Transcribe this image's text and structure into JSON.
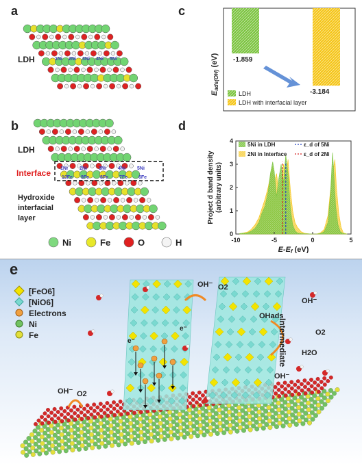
{
  "panel_a": {
    "label": "a",
    "layer_label": "LDH",
    "site_labels": [
      "1Ni",
      "2Ni",
      "3Ni",
      "4Ni",
      "5Ni"
    ]
  },
  "panel_b": {
    "label": "b",
    "ldh_label": "LDH",
    "interface_label": "Interface",
    "hydroxide_label": "Hydroxide\ninterfacial\nlayer",
    "ni_sites": [
      "1Ni",
      "2Ni",
      "3Ni",
      "4Ni",
      "5Ni"
    ],
    "fe_sites": [
      "10Fe",
      "9Fe",
      "8Fe",
      "7Fe",
      "6Fe"
    ],
    "legend": [
      {
        "symbol": "Ni",
        "color": "#7fd97f"
      },
      {
        "symbol": "Fe",
        "color": "#e8e82a"
      },
      {
        "symbol": "O",
        "color": "#e02020"
      },
      {
        "symbol": "H",
        "color": "#f4f4f4"
      }
    ]
  },
  "panel_c": {
    "label": "c",
    "chart_data": {
      "type": "bar",
      "ylabel": "E_ads(OH) (eV)",
      "categories": [
        "LDH",
        "LDH with interfacial layer"
      ],
      "values": [
        -1.859,
        -3.184
      ],
      "value_labels": [
        "-1.859",
        "-3.184"
      ],
      "colors": [
        "#7cc440",
        "#f5c518"
      ],
      "legend_position": "bottom-left",
      "ylim": [
        -3.6,
        0
      ]
    }
  },
  "panel_d": {
    "label": "d",
    "chart_data": {
      "type": "area",
      "xlabel": "E-E_f (eV)",
      "ylabel": "Project d band density\n(arbitrary units)",
      "xlim": [
        -10,
        5
      ],
      "ylim": [
        0,
        4
      ],
      "xticks": [
        -10,
        -5,
        0,
        5
      ],
      "yticks": [
        0,
        1,
        2,
        3,
        4
      ],
      "series": [
        {
          "name": "5Ni in LDH",
          "color": "#7cc440",
          "x": [
            -9.5,
            -8.5,
            -8,
            -7.5,
            -7,
            -6.6,
            -6.2,
            -5.8,
            -5.5,
            -5.2,
            -5.0,
            -4.7,
            -4.4,
            -4.1,
            -3.8,
            -3.5,
            -3.2,
            -2.9,
            -2.6,
            -2.3,
            -2.0,
            -1.5,
            -1.0,
            -0.5,
            0,
            0.5,
            1.0,
            1.5,
            2.0,
            2.3,
            2.6,
            2.8,
            3.0,
            3.3,
            3.6,
            4.0,
            4.5
          ],
          "y": [
            0.02,
            0.05,
            0.12,
            0.25,
            0.5,
            0.9,
            1.2,
            1.8,
            2.6,
            3.1,
            2.7,
            1.6,
            2.4,
            3.0,
            2.2,
            3.4,
            2.6,
            1.1,
            0.4,
            0.15,
            0.05,
            0.02,
            0.01,
            0.01,
            0,
            0,
            0.02,
            0.1,
            0.5,
            1.6,
            3.5,
            2.4,
            1.2,
            0.4,
            0.1,
            0.02,
            0
          ]
        },
        {
          "name": "2Ni in Interface",
          "color": "#f5c518",
          "x": [
            -9.5,
            -8.5,
            -8,
            -7.5,
            -7,
            -6.6,
            -6.2,
            -5.8,
            -5.5,
            -5.2,
            -5.0,
            -4.7,
            -4.4,
            -4.1,
            -3.8,
            -3.5,
            -3.2,
            -2.9,
            -2.6,
            -2.3,
            -2.0,
            -1.5,
            -1.0,
            -0.5,
            0,
            0.5,
            1.0,
            1.5,
            2.0,
            2.3,
            2.6,
            2.9,
            3.1,
            3.4,
            3.7,
            4.0,
            4.5
          ],
          "y": [
            0.02,
            0.08,
            0.2,
            0.4,
            0.7,
            1.1,
            1.5,
            2.0,
            2.5,
            2.9,
            2.2,
            2.6,
            1.8,
            2.3,
            3.0,
            2.4,
            3.2,
            1.9,
            1.0,
            0.5,
            0.3,
            0.1,
            0.03,
            0.01,
            0,
            0,
            0.05,
            0.2,
            0.8,
            1.8,
            2.6,
            3.2,
            2.0,
            0.9,
            0.3,
            0.05,
            0
          ]
        }
      ],
      "vlines": [
        {
          "name": "ε_d of 5Ni",
          "x": -3.5,
          "color": "#1f3fbf"
        },
        {
          "name": "ε_d of 2Ni",
          "x": -3.9,
          "color": "#d42020"
        }
      ],
      "legend": [
        "5Ni in LDH",
        "ε_d of 5Ni",
        "2Ni in Interface",
        "ε_d of 2Ni"
      ]
    }
  },
  "panel_e": {
    "label": "e",
    "legend": [
      {
        "text": "[FeO6]",
        "icon": "yellow-octahedron-icon"
      },
      {
        "text": "[NiO6]",
        "icon": "cyan-octahedron-icon"
      },
      {
        "text": "Electrons",
        "icon": "electron-icon"
      },
      {
        "text": "Ni",
        "icon": "ni-sphere-icon"
      },
      {
        "text": "Fe",
        "icon": "fe-sphere-icon"
      }
    ],
    "labels": {
      "oh_top": "OH⁻",
      "o2_top": "O2",
      "ohads": "OHads",
      "oh_right": "OH⁻",
      "intermediate": "Intermediate",
      "o2_right": "O2",
      "h2o": "H2O",
      "oh_mid": "OH⁻",
      "oh_left": "OH⁻",
      "o2_left": "O2",
      "e": "e⁻"
    }
  }
}
